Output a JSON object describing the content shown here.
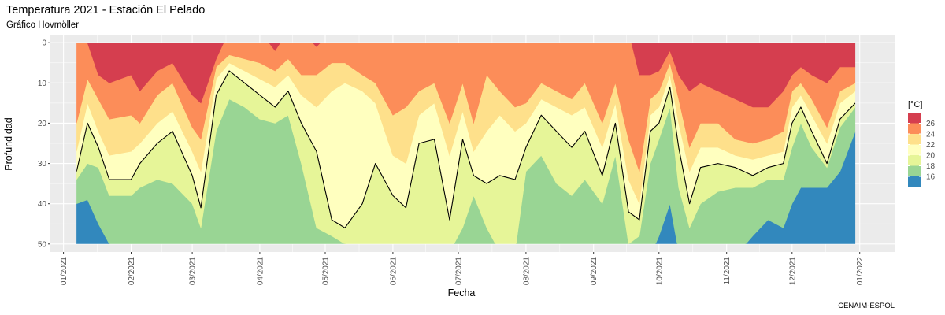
{
  "chart_data": {
    "type": "heatmap",
    "title": "Temperatura 2021 - Estación El Pelado",
    "subtitle": "Gráfico Hovmöller",
    "xlabel": "Fecha",
    "ylabel": "Profundidad",
    "caption": "CENAIM-ESPOL",
    "legend": {
      "title": "[°C]",
      "placement": "right",
      "breaks": [
        16,
        18,
        20,
        22,
        24,
        26
      ],
      "break_labels": [
        "16",
        "18",
        "20",
        "22",
        "24",
        "26"
      ],
      "bins": [
        {
          "min": 14,
          "max": 16,
          "color": "#3288bd"
        },
        {
          "min": 16,
          "max": 18,
          "color": "#99d594"
        },
        {
          "min": 18,
          "max": 20,
          "color": "#e6f598"
        },
        {
          "min": 20,
          "max": 22,
          "color": "#ffffbf"
        },
        {
          "min": 22,
          "max": 24,
          "color": "#fee08b"
        },
        {
          "min": 24,
          "max": 26,
          "color": "#fc8d59"
        },
        {
          "min": 26,
          "max": 28,
          "color": "#d53e4f"
        }
      ]
    },
    "x_ticks": [
      "2021-01-01",
      "2021-02-01",
      "2021-03-01",
      "2021-04-01",
      "2021-05-01",
      "2021-06-01",
      "2021-07-01",
      "2021-08-01",
      "2021-09-01",
      "2021-10-01",
      "2021-11-01",
      "2021-12-01",
      "2022-01-01"
    ],
    "x_tick_labels": [
      "01/2021",
      "02/2021",
      "03/2021",
      "04/2021",
      "05/2021",
      "06/2021",
      "07/2021",
      "08/2021",
      "09/2021",
      "10/2021",
      "11/2021",
      "12/2021",
      "01/2022"
    ],
    "xlim": [
      "2020-12-26",
      "2022-01-17"
    ],
    "data_x_range": [
      "2021-01-07",
      "2021-12-30"
    ],
    "y_ticks": [
      0,
      10,
      20,
      30,
      40,
      50
    ],
    "y_tick_labels": [
      "0",
      "10",
      "20",
      "30",
      "40",
      "50"
    ],
    "ylim": [
      52,
      -2
    ],
    "y_reversed": true,
    "grid": true,
    "isotherm_level": 20,
    "profiles": [
      {
        "date": "2021-01-07",
        "isotherms": {
          "16": 40,
          "18": 34,
          "20": 32,
          "22": 27,
          "24": 20,
          "26": 0
        }
      },
      {
        "date": "2021-01-12",
        "isotherms": {
          "16": 39,
          "18": 30,
          "20": 20,
          "22": 15,
          "24": 9,
          "26": 0
        }
      },
      {
        "date": "2021-01-17",
        "isotherms": {
          "16": 45,
          "18": 31,
          "20": 26,
          "22": 22,
          "24": 14,
          "26": 8
        }
      },
      {
        "date": "2021-01-22",
        "isotherms": {
          "16": 50,
          "18": 38,
          "20": 34,
          "22": 28,
          "24": 19,
          "26": 10
        }
      },
      {
        "date": "2021-02-01",
        "isotherms": {
          "16": 53,
          "18": 38,
          "20": 34,
          "22": 27,
          "24": 18,
          "26": 8
        }
      },
      {
        "date": "2021-02-05",
        "isotherms": {
          "16": 53,
          "18": 36,
          "20": 30,
          "22": 25,
          "24": 20,
          "26": 12
        }
      },
      {
        "date": "2021-02-13",
        "isotherms": {
          "16": 53,
          "18": 34,
          "20": 25,
          "22": 20,
          "24": 13,
          "26": 7
        }
      },
      {
        "date": "2021-02-20",
        "isotherms": {
          "16": 53,
          "18": 35,
          "20": 22,
          "22": 17,
          "24": 10,
          "26": 5
        }
      },
      {
        "date": "2021-03-01",
        "isotherms": {
          "16": 53,
          "18": 40,
          "20": 33,
          "22": 27,
          "24": 21,
          "26": 13
        }
      },
      {
        "date": "2021-03-05",
        "isotherms": {
          "16": 53,
          "18": 46,
          "20": 41,
          "22": 32,
          "24": 24,
          "26": 15
        }
      },
      {
        "date": "2021-03-12",
        "isotherms": {
          "16": 53,
          "18": 22,
          "20": 13,
          "22": 9,
          "24": 6,
          "26": 4
        }
      },
      {
        "date": "2021-03-18",
        "isotherms": {
          "16": 53,
          "18": 14,
          "20": 7,
          "22": 5,
          "24": 3,
          "26": -3
        }
      },
      {
        "date": "2021-03-25",
        "isotherms": {
          "16": 53,
          "18": 16,
          "20": 10,
          "22": 7,
          "24": 4,
          "26": -3
        }
      },
      {
        "date": "2021-04-01",
        "isotherms": {
          "16": 53,
          "18": 19,
          "20": 13,
          "22": 9,
          "24": 5,
          "26": -3
        }
      },
      {
        "date": "2021-04-08",
        "isotherms": {
          "16": 53,
          "18": 20,
          "20": 16,
          "22": 11,
          "24": 7,
          "26": 2
        }
      },
      {
        "date": "2021-04-14",
        "isotherms": {
          "16": 53,
          "18": 18,
          "20": 12,
          "22": 8,
          "24": 4,
          "26": -3
        }
      },
      {
        "date": "2021-04-20",
        "isotherms": {
          "16": 53,
          "18": 30,
          "20": 20,
          "22": 13,
          "24": 8,
          "26": -3
        }
      },
      {
        "date": "2021-04-27",
        "isotherms": {
          "16": 53,
          "18": 46,
          "20": 27,
          "22": 16,
          "24": 8,
          "26": 1
        }
      },
      {
        "date": "2021-05-04",
        "isotherms": {
          "16": 53,
          "18": 48,
          "20": 44,
          "22": 12,
          "24": 5,
          "26": -3
        }
      },
      {
        "date": "2021-05-10",
        "isotherms": {
          "16": 53,
          "18": 50,
          "20": 46,
          "22": 10,
          "24": 5,
          "26": -3
        }
      },
      {
        "date": "2021-05-18",
        "isotherms": {
          "16": 53,
          "18": 52,
          "20": 40,
          "22": 12,
          "24": 8,
          "26": -3
        }
      },
      {
        "date": "2021-05-24",
        "isotherms": {
          "16": 53,
          "18": 52,
          "20": 30,
          "22": 15,
          "24": 10,
          "26": -3
        }
      },
      {
        "date": "2021-06-01",
        "isotherms": {
          "16": 53,
          "18": 52,
          "20": 38,
          "22": 28,
          "24": 18,
          "26": -3
        }
      },
      {
        "date": "2021-06-07",
        "isotherms": {
          "16": 53,
          "18": 52,
          "20": 41,
          "22": 30,
          "24": 16,
          "26": -3
        }
      },
      {
        "date": "2021-06-13",
        "isotherms": {
          "16": 53,
          "18": 52,
          "20": 25,
          "22": 18,
          "24": 12,
          "26": -3
        }
      },
      {
        "date": "2021-06-20",
        "isotherms": {
          "16": 53,
          "18": 52,
          "20": 24,
          "22": 15,
          "24": 10,
          "26": -3
        }
      },
      {
        "date": "2021-06-27",
        "isotherms": {
          "16": 53,
          "18": 52,
          "20": 44,
          "22": 28,
          "24": 20,
          "26": -3
        }
      },
      {
        "date": "2021-07-03",
        "isotherms": {
          "16": 53,
          "18": 46,
          "20": 24,
          "22": 17,
          "24": 10,
          "26": -3
        }
      },
      {
        "date": "2021-07-08",
        "isotherms": {
          "16": 53,
          "18": 38,
          "20": 33,
          "22": 27,
          "24": 20,
          "26": -3
        }
      },
      {
        "date": "2021-07-14",
        "isotherms": {
          "16": 53,
          "18": 46,
          "20": 35,
          "22": 22,
          "24": 8,
          "26": -3
        }
      },
      {
        "date": "2021-07-20",
        "isotherms": {
          "16": 53,
          "18": 52,
          "20": 33,
          "22": 18,
          "24": 12,
          "26": -3
        }
      },
      {
        "date": "2021-07-27",
        "isotherms": {
          "16": 53,
          "18": 52,
          "20": 34,
          "22": 22,
          "24": 16,
          "26": -3
        }
      },
      {
        "date": "2021-08-01",
        "isotherms": {
          "16": 53,
          "18": 32,
          "20": 26,
          "22": 20,
          "24": 15,
          "26": -3
        }
      },
      {
        "date": "2021-08-08",
        "isotherms": {
          "16": 53,
          "18": 28,
          "20": 18,
          "22": 14,
          "24": 10,
          "26": -3
        }
      },
      {
        "date": "2021-08-15",
        "isotherms": {
          "16": 53,
          "18": 35,
          "20": 22,
          "22": 16,
          "24": 12,
          "26": -3
        }
      },
      {
        "date": "2021-08-22",
        "isotherms": {
          "16": 53,
          "18": 38,
          "20": 26,
          "22": 18,
          "24": 14,
          "26": -3
        }
      },
      {
        "date": "2021-08-28",
        "isotherms": {
          "16": 53,
          "18": 34,
          "20": 22,
          "22": 16,
          "24": 10,
          "26": -3
        }
      },
      {
        "date": "2021-09-05",
        "isotherms": {
          "16": 53,
          "18": 40,
          "20": 33,
          "22": 26,
          "24": 20,
          "26": -3
        }
      },
      {
        "date": "2021-09-11",
        "isotherms": {
          "16": 53,
          "18": 28,
          "20": 20,
          "22": 15,
          "24": 10,
          "26": -3
        }
      },
      {
        "date": "2021-09-17",
        "isotherms": {
          "16": 53,
          "18": 50,
          "20": 42,
          "22": 34,
          "24": 24,
          "26": -3
        }
      },
      {
        "date": "2021-09-22",
        "isotherms": {
          "16": 53,
          "18": 48,
          "20": 44,
          "22": 40,
          "24": 32,
          "26": 8
        }
      },
      {
        "date": "2021-09-27",
        "isotherms": {
          "16": 53,
          "18": 30,
          "20": 22,
          "22": 18,
          "24": 14,
          "26": 8
        }
      },
      {
        "date": "2021-10-01",
        "isotherms": {
          "16": 48,
          "18": 24,
          "20": 20,
          "22": 16,
          "24": 12,
          "26": 7
        }
      },
      {
        "date": "2021-10-06",
        "isotherms": {
          "16": 40,
          "18": 16,
          "20": 11,
          "22": 8,
          "24": 5,
          "26": 2
        }
      },
      {
        "date": "2021-10-10",
        "isotherms": {
          "16": 52,
          "18": 36,
          "20": 26,
          "22": 20,
          "24": 14,
          "26": 8
        }
      },
      {
        "date": "2021-10-15",
        "isotherms": {
          "16": 53,
          "18": 46,
          "20": 40,
          "22": 32,
          "24": 26,
          "26": 12
        }
      },
      {
        "date": "2021-10-20",
        "isotherms": {
          "16": 53,
          "18": 40,
          "20": 31,
          "22": 26,
          "24": 20,
          "26": 10
        }
      },
      {
        "date": "2021-10-28",
        "isotherms": {
          "16": 53,
          "18": 37,
          "20": 30,
          "22": 26,
          "24": 20,
          "26": 12
        }
      },
      {
        "date": "2021-11-05",
        "isotherms": {
          "16": 53,
          "18": 36,
          "20": 31,
          "22": 28,
          "24": 24,
          "26": 14
        }
      },
      {
        "date": "2021-11-13",
        "isotherms": {
          "16": 48,
          "18": 36,
          "20": 33,
          "22": 29,
          "24": 25,
          "26": 16
        }
      },
      {
        "date": "2021-11-20",
        "isotherms": {
          "16": 44,
          "18": 34,
          "20": 31,
          "22": 28,
          "24": 24,
          "26": 16
        }
      },
      {
        "date": "2021-11-27",
        "isotherms": {
          "16": 46,
          "18": 34,
          "20": 30,
          "22": 27,
          "24": 22,
          "26": 12
        }
      },
      {
        "date": "2021-12-01",
        "isotherms": {
          "16": 40,
          "18": 26,
          "20": 20,
          "22": 16,
          "24": 12,
          "26": 8
        }
      },
      {
        "date": "2021-12-05",
        "isotherms": {
          "16": 36,
          "18": 20,
          "20": 16,
          "22": 13,
          "24": 10,
          "26": 6
        }
      },
      {
        "date": "2021-12-10",
        "isotherms": {
          "16": 36,
          "18": 26,
          "20": 22,
          "22": 18,
          "24": 14,
          "26": 8
        }
      },
      {
        "date": "2021-12-17",
        "isotherms": {
          "16": 36,
          "18": 31,
          "20": 30,
          "22": 25,
          "24": 21,
          "26": 10
        }
      },
      {
        "date": "2021-12-23",
        "isotherms": {
          "16": 32,
          "18": 21,
          "20": 19,
          "22": 15,
          "24": 12,
          "26": 6
        }
      },
      {
        "date": "2021-12-30",
        "isotherms": {
          "16": 22,
          "18": 16,
          "20": 15,
          "22": 12,
          "24": 10,
          "26": 6
        }
      }
    ]
  }
}
